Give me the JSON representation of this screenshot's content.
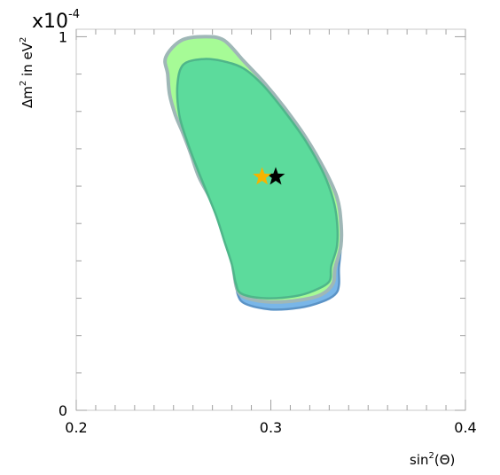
{
  "chart_data": {
    "type": "contour",
    "xlabel_main": "sin",
    "xlabel_sup": "2",
    "xlabel_tail": "(Θ)",
    "ylabel_main": "Δm",
    "ylabel_sup1": "2",
    "ylabel_mid": " in eV",
    "ylabel_sup2": "2",
    "y_multiplier_base": "x10",
    "y_multiplier_exp": "-4",
    "xlim": [
      0.2,
      0.4
    ],
    "ylim": [
      0,
      1.02
    ],
    "xticks": [
      {
        "value": 0.2,
        "label": "0.2"
      },
      {
        "value": 0.3,
        "label": "0.3"
      },
      {
        "value": 0.4,
        "label": "0.4"
      }
    ],
    "yticks": [
      {
        "value": 0,
        "label": "0"
      },
      {
        "value": 1,
        "label": "1"
      }
    ],
    "grid": false,
    "regions": [
      {
        "color": "#79b6e8",
        "stroke": "#5b93c6",
        "points": [
          [
            0.266,
            0.925
          ],
          [
            0.258,
            0.845
          ],
          [
            0.258,
            0.75
          ],
          [
            0.262,
            0.655
          ],
          [
            0.27,
            0.575
          ],
          [
            0.275,
            0.495
          ],
          [
            0.28,
            0.42
          ],
          [
            0.282,
            0.355
          ],
          [
            0.283,
            0.31
          ],
          [
            0.287,
            0.285
          ],
          [
            0.3,
            0.27
          ],
          [
            0.315,
            0.275
          ],
          [
            0.326,
            0.29
          ],
          [
            0.333,
            0.31
          ],
          [
            0.335,
            0.335
          ],
          [
            0.335,
            0.38
          ],
          [
            0.336,
            0.44
          ],
          [
            0.335,
            0.5
          ],
          [
            0.331,
            0.57
          ],
          [
            0.324,
            0.65
          ],
          [
            0.314,
            0.74
          ],
          [
            0.3,
            0.83
          ],
          [
            0.29,
            0.895
          ],
          [
            0.28,
            0.93
          ]
        ]
      },
      {
        "color": "#a6fb96",
        "stroke": "#9fb7b7",
        "points": [
          [
            0.246,
            0.945
          ],
          [
            0.247,
            0.9
          ],
          [
            0.248,
            0.845
          ],
          [
            0.251,
            0.79
          ],
          [
            0.255,
            0.74
          ],
          [
            0.259,
            0.685
          ],
          [
            0.263,
            0.625
          ],
          [
            0.269,
            0.565
          ],
          [
            0.274,
            0.5
          ],
          [
            0.279,
            0.435
          ],
          [
            0.281,
            0.37
          ],
          [
            0.283,
            0.32
          ],
          [
            0.288,
            0.3
          ],
          [
            0.3,
            0.29
          ],
          [
            0.315,
            0.295
          ],
          [
            0.326,
            0.31
          ],
          [
            0.332,
            0.34
          ],
          [
            0.333,
            0.38
          ],
          [
            0.336,
            0.44
          ],
          [
            0.336,
            0.505
          ],
          [
            0.334,
            0.57
          ],
          [
            0.328,
            0.64
          ],
          [
            0.318,
            0.73
          ],
          [
            0.307,
            0.81
          ],
          [
            0.296,
            0.88
          ],
          [
            0.286,
            0.935
          ],
          [
            0.276,
            0.99
          ],
          [
            0.266,
            1.0
          ],
          [
            0.254,
            0.99
          ]
        ]
      },
      {
        "color": "#5cdb9c",
        "stroke": "#4fb68a",
        "points": [
          [
            0.255,
            0.925
          ],
          [
            0.252,
            0.87
          ],
          [
            0.253,
            0.79
          ],
          [
            0.257,
            0.72
          ],
          [
            0.262,
            0.65
          ],
          [
            0.267,
            0.585
          ],
          [
            0.272,
            0.52
          ],
          [
            0.276,
            0.455
          ],
          [
            0.28,
            0.39
          ],
          [
            0.282,
            0.34
          ],
          [
            0.285,
            0.312
          ],
          [
            0.297,
            0.3
          ],
          [
            0.312,
            0.305
          ],
          [
            0.322,
            0.32
          ],
          [
            0.33,
            0.345
          ],
          [
            0.331,
            0.385
          ],
          [
            0.334,
            0.44
          ],
          [
            0.334,
            0.505
          ],
          [
            0.332,
            0.565
          ],
          [
            0.327,
            0.635
          ],
          [
            0.318,
            0.72
          ],
          [
            0.307,
            0.8
          ],
          [
            0.296,
            0.87
          ],
          [
            0.286,
            0.915
          ],
          [
            0.275,
            0.935
          ],
          [
            0.265,
            0.94
          ]
        ]
      }
    ],
    "markers": [
      {
        "x": 0.3025,
        "y": 0.625,
        "color": "#000000",
        "shape": "star"
      },
      {
        "x": 0.2955,
        "y": 0.625,
        "color": "#f5b400",
        "shape": "star"
      }
    ]
  }
}
